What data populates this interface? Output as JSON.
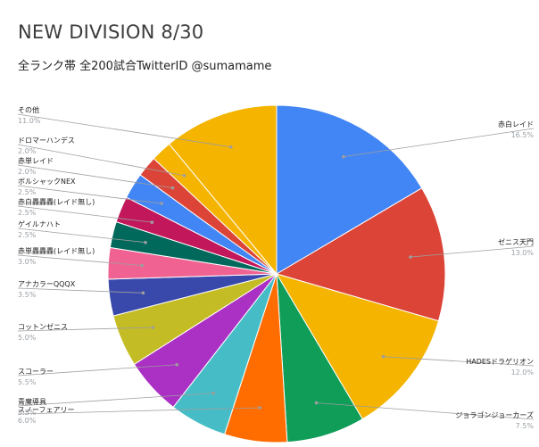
{
  "chart_data": {
    "type": "pie",
    "title": "NEW DIVISION 8/30",
    "subtitle": "全ランク帯 全200試合TwitterID @sumamame",
    "slices": [
      {
        "label": "赤白レイド",
        "pct_text": "16.5%",
        "value": 16.5,
        "color": "#4285f4"
      },
      {
        "label": "ゼニス天門",
        "pct_text": "13.0%",
        "value": 13.0,
        "color": "#db4437"
      },
      {
        "label": "HADESドラゲリオン",
        "pct_text": "12.0%",
        "value": 12.0,
        "color": "#f4b400"
      },
      {
        "label": "ジョラゴンジョーカーズ",
        "pct_text": "7.5%",
        "value": 7.5,
        "color": "#0f9d58"
      },
      {
        "label": "スノーフェアリー",
        "pct_text": "6.0%",
        "value": 6.0,
        "color": "#ff6d01"
      },
      {
        "label": "青魔導具",
        "pct_text": "5.5%",
        "value": 5.5,
        "color": "#46bdc6"
      },
      {
        "label": "スコーラー",
        "pct_text": "5.5%",
        "value": 5.5,
        "color": "#ab30c4"
      },
      {
        "label": "コットンゼニス",
        "pct_text": "5.0%",
        "value": 5.0,
        "color": "#c4bc24"
      },
      {
        "label": "アナカラーQQQX",
        "pct_text": "3.5%",
        "value": 3.5,
        "color": "#3949ab"
      },
      {
        "label": "赤単轟轟轟(レイド無し)",
        "pct_text": "3.0%",
        "value": 3.0,
        "color": "#f06292"
      },
      {
        "label": "ゲイルナハト",
        "pct_text": "2.5%",
        "value": 2.5,
        "color": "#00695c"
      },
      {
        "label": "赤白轟轟轟(レイド無し)",
        "pct_text": "2.5%",
        "value": 2.5,
        "color": "#c2185b"
      },
      {
        "label": "ボルシャックNEX",
        "pct_text": "2.5%",
        "value": 2.5,
        "color": "#4285f4"
      },
      {
        "label": "赤単レイド",
        "pct_text": "2.0%",
        "value": 2.0,
        "color": "#db4437"
      },
      {
        "label": "ドロマーハンデス",
        "pct_text": "2.0%",
        "value": 2.0,
        "color": "#f4b400"
      },
      {
        "label": "その他",
        "pct_text": "11.0%",
        "value": 11.0,
        "color": "#f4b400"
      }
    ]
  }
}
